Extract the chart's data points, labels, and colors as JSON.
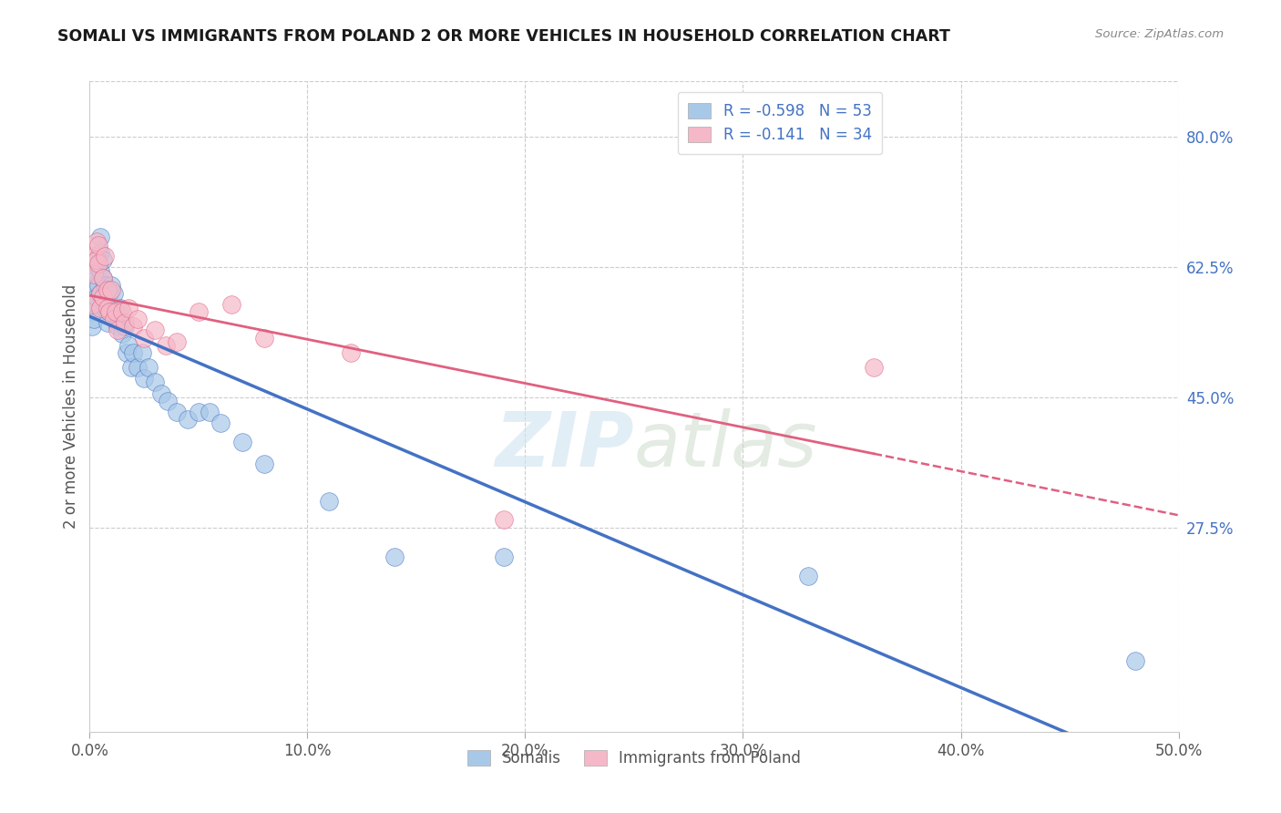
{
  "title": "SOMALI VS IMMIGRANTS FROM POLAND 2 OR MORE VEHICLES IN HOUSEHOLD CORRELATION CHART",
  "source": "Source: ZipAtlas.com",
  "ylabel": "2 or more Vehicles in Household",
  "xlim": [
    0.0,
    0.5
  ],
  "ylim": [
    0.0,
    0.875
  ],
  "xtick_labels": [
    "0.0%",
    "10.0%",
    "20.0%",
    "30.0%",
    "40.0%",
    "50.0%"
  ],
  "xtick_values": [
    0.0,
    0.1,
    0.2,
    0.3,
    0.4,
    0.5
  ],
  "ytick_labels": [
    "80.0%",
    "62.5%",
    "45.0%",
    "27.5%"
  ],
  "ytick_values": [
    0.8,
    0.625,
    0.45,
    0.275
  ],
  "legend_label1": "Somalis",
  "legend_label2": "Immigrants from Poland",
  "R1": -0.598,
  "N1": 53,
  "R2": -0.141,
  "N2": 34,
  "color_blue": "#a8c8e8",
  "color_pink": "#f5b8c8",
  "line_color_blue": "#4472c4",
  "line_color_pink": "#e06080",
  "watermark": "ZIPatlas",
  "somali_x": [
    0.001,
    0.001,
    0.002,
    0.002,
    0.002,
    0.003,
    0.003,
    0.003,
    0.004,
    0.004,
    0.005,
    0.005,
    0.005,
    0.005,
    0.006,
    0.006,
    0.007,
    0.007,
    0.008,
    0.008,
    0.009,
    0.009,
    0.01,
    0.01,
    0.011,
    0.012,
    0.013,
    0.014,
    0.015,
    0.016,
    0.017,
    0.018,
    0.019,
    0.02,
    0.022,
    0.024,
    0.025,
    0.027,
    0.03,
    0.033,
    0.036,
    0.04,
    0.045,
    0.05,
    0.055,
    0.06,
    0.07,
    0.08,
    0.11,
    0.14,
    0.19,
    0.33,
    0.48
  ],
  "somali_y": [
    0.565,
    0.545,
    0.6,
    0.575,
    0.555,
    0.625,
    0.615,
    0.585,
    0.64,
    0.6,
    0.665,
    0.645,
    0.62,
    0.59,
    0.635,
    0.61,
    0.6,
    0.57,
    0.575,
    0.55,
    0.59,
    0.565,
    0.6,
    0.565,
    0.59,
    0.56,
    0.545,
    0.57,
    0.535,
    0.545,
    0.51,
    0.52,
    0.49,
    0.51,
    0.49,
    0.51,
    0.475,
    0.49,
    0.47,
    0.455,
    0.445,
    0.43,
    0.42,
    0.43,
    0.43,
    0.415,
    0.39,
    0.36,
    0.31,
    0.235,
    0.235,
    0.21,
    0.095
  ],
  "poland_x": [
    0.001,
    0.002,
    0.002,
    0.003,
    0.003,
    0.004,
    0.004,
    0.005,
    0.005,
    0.006,
    0.006,
    0.007,
    0.008,
    0.008,
    0.009,
    0.01,
    0.011,
    0.012,
    0.013,
    0.015,
    0.016,
    0.018,
    0.02,
    0.022,
    0.025,
    0.03,
    0.035,
    0.04,
    0.05,
    0.065,
    0.08,
    0.12,
    0.19,
    0.36
  ],
  "poland_y": [
    0.575,
    0.64,
    0.615,
    0.66,
    0.635,
    0.655,
    0.63,
    0.59,
    0.57,
    0.61,
    0.585,
    0.64,
    0.595,
    0.57,
    0.565,
    0.595,
    0.555,
    0.565,
    0.54,
    0.565,
    0.55,
    0.57,
    0.545,
    0.555,
    0.53,
    0.54,
    0.52,
    0.525,
    0.565,
    0.575,
    0.53,
    0.51,
    0.285,
    0.49
  ]
}
